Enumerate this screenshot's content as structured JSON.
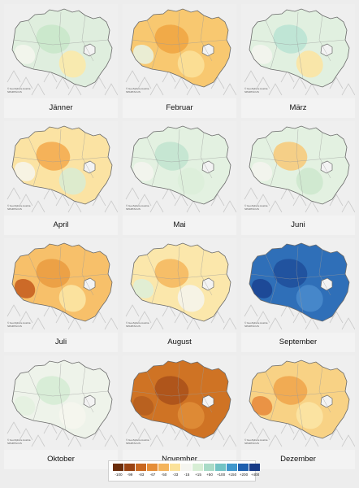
{
  "credit_line1": "© GeoSphere Austria",
  "credit_line2": "SPARTACUS",
  "colors": {
    "region_fill_default": "#f4f4f2",
    "terrain": "#c9c9c9",
    "outline": "#6a6a6a"
  },
  "months": [
    {
      "label": "Jänner",
      "base": "#dfeede",
      "patches": [
        "#c8e6c9",
        "#fde9a7",
        "#f6f6ee"
      ]
    },
    {
      "label": "Februar",
      "base": "#f8c870",
      "patches": [
        "#f0a441",
        "#fbe29a",
        "#e8f3e4"
      ]
    },
    {
      "label": "März",
      "base": "#e1f0e0",
      "patches": [
        "#b8e3d2",
        "#fde49f",
        "#f5f5ef"
      ]
    },
    {
      "label": "April",
      "base": "#fbe3a3",
      "patches": [
        "#f3a94c",
        "#d7ecd5",
        "#f6f6ee"
      ]
    },
    {
      "label": "Mai",
      "base": "#e3f1e1",
      "patches": [
        "#c1e4cf",
        "#dcefd9",
        "#f4f4ee"
      ]
    },
    {
      "label": "Juni",
      "base": "#e3f1e1",
      "patches": [
        "#f8c977",
        "#cde8cc",
        "#f4f4ee"
      ]
    },
    {
      "label": "Juli",
      "base": "#f7c06a",
      "patches": [
        "#ea9b3f",
        "#fbe7a7",
        "#c45a1c"
      ]
    },
    {
      "label": "August",
      "base": "#fbe7ab",
      "patches": [
        "#f5b65c",
        "#f5f5ef",
        "#dcefd9"
      ]
    },
    {
      "label": "September",
      "base": "#2f6fb8",
      "patches": [
        "#1f4f9a",
        "#4a8ccd",
        "#1a4390"
      ]
    },
    {
      "label": "Oktober",
      "base": "#eef3ea",
      "patches": [
        "#d3ebd4",
        "#f6f6ef",
        "#e3f0df"
      ]
    },
    {
      "label": "November",
      "base": "#cf7324",
      "patches": [
        "#a9501a",
        "#e08e38",
        "#b55e1f"
      ]
    },
    {
      "label": "Dezember",
      "base": "#f8d285",
      "patches": [
        "#f0a44a",
        "#fbe6a6",
        "#e8883a"
      ]
    }
  ],
  "legend": {
    "ticks": [
      "-100",
      "-99",
      "-83",
      "-67",
      "-50",
      "-33",
      "-15",
      "+15",
      "+50",
      "+100",
      "+150",
      "+200",
      "+400"
    ],
    "colors": [
      "#6b2d0c",
      "#9a4313",
      "#c9671f",
      "#e58d37",
      "#f4b45c",
      "#fbe29b",
      "#f5f5f0",
      "#d7eed5",
      "#a9dbc7",
      "#72c3c4",
      "#3f97cc",
      "#1e5fae",
      "#173a86"
    ]
  }
}
